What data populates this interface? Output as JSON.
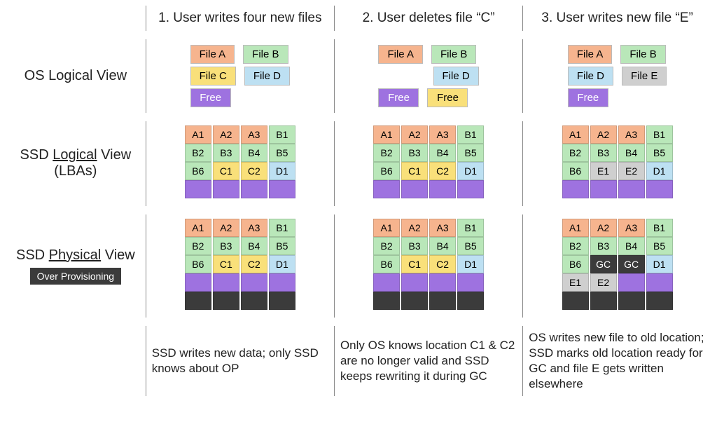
{
  "colors": {
    "peach": "#f6b48e",
    "green": "#b9e7b9",
    "yellow": "#f9e07a",
    "blue": "#bde0f2",
    "purple": "#9e72e0",
    "gray": "#cfcfcf",
    "dark": "#3b3b3b",
    "white": "#ffffff"
  },
  "headers": {
    "step1": "1. User writes four  new files",
    "step2": "2. User deletes file “C”",
    "step3": "3. User writes new file “E”"
  },
  "rowLabels": {
    "os": "OS Logical View",
    "ssdL_a": "SSD ",
    "ssdL_b": "Logical",
    "ssdL_c": " View (LBAs)",
    "ssdP_a": "SSD ",
    "ssdP_b": "Physical",
    "ssdP_c": " View",
    "over": "Over Provisioning"
  },
  "files": {
    "A": {
      "label": "File A",
      "color": "peach"
    },
    "B": {
      "label": "File B",
      "color": "green"
    },
    "C": {
      "label": "File C",
      "color": "yellow"
    },
    "D": {
      "label": "File D",
      "color": "blue"
    },
    "E": {
      "label": "File E",
      "color": "gray"
    },
    "Free": {
      "label": "Free",
      "color": "purple"
    },
    "FreeY": {
      "label": "Free",
      "color": "yellow"
    }
  },
  "osViews": {
    "step1": [
      [
        "A",
        "B"
      ],
      [
        "C",
        "D"
      ],
      [
        "Free",
        null
      ]
    ],
    "step2": [
      [
        "A",
        "B"
      ],
      [
        null,
        "D"
      ],
      [
        "Free",
        "FreeY"
      ]
    ],
    "step3": [
      [
        "A",
        "B"
      ],
      [
        "D",
        "E"
      ],
      [
        "Free",
        null
      ]
    ]
  },
  "ssdLogical": {
    "step1": [
      [
        {
          "t": "A1",
          "c": "peach"
        },
        {
          "t": "A2",
          "c": "peach"
        },
        {
          "t": "A3",
          "c": "peach"
        },
        {
          "t": "B1",
          "c": "green"
        }
      ],
      [
        {
          "t": "B2",
          "c": "green"
        },
        {
          "t": "B3",
          "c": "green"
        },
        {
          "t": "B4",
          "c": "green"
        },
        {
          "t": "B5",
          "c": "green"
        }
      ],
      [
        {
          "t": "B6",
          "c": "green"
        },
        {
          "t": "C1",
          "c": "yellow"
        },
        {
          "t": "C2",
          "c": "yellow"
        },
        {
          "t": "D1",
          "c": "blue"
        }
      ],
      [
        {
          "t": "",
          "c": "purple"
        },
        {
          "t": "",
          "c": "purple"
        },
        {
          "t": "",
          "c": "purple"
        },
        {
          "t": "",
          "c": "purple"
        }
      ]
    ],
    "step2": [
      [
        {
          "t": "A1",
          "c": "peach"
        },
        {
          "t": "A2",
          "c": "peach"
        },
        {
          "t": "A3",
          "c": "peach"
        },
        {
          "t": "B1",
          "c": "green"
        }
      ],
      [
        {
          "t": "B2",
          "c": "green"
        },
        {
          "t": "B3",
          "c": "green"
        },
        {
          "t": "B4",
          "c": "green"
        },
        {
          "t": "B5",
          "c": "green"
        }
      ],
      [
        {
          "t": "B6",
          "c": "green"
        },
        {
          "t": "C1",
          "c": "yellow"
        },
        {
          "t": "C2",
          "c": "yellow"
        },
        {
          "t": "D1",
          "c": "blue"
        }
      ],
      [
        {
          "t": "",
          "c": "purple"
        },
        {
          "t": "",
          "c": "purple"
        },
        {
          "t": "",
          "c": "purple"
        },
        {
          "t": "",
          "c": "purple"
        }
      ]
    ],
    "step3": [
      [
        {
          "t": "A1",
          "c": "peach"
        },
        {
          "t": "A2",
          "c": "peach"
        },
        {
          "t": "A3",
          "c": "peach"
        },
        {
          "t": "B1",
          "c": "green"
        }
      ],
      [
        {
          "t": "B2",
          "c": "green"
        },
        {
          "t": "B3",
          "c": "green"
        },
        {
          "t": "B4",
          "c": "green"
        },
        {
          "t": "B5",
          "c": "green"
        }
      ],
      [
        {
          "t": "B6",
          "c": "green"
        },
        {
          "t": "E1",
          "c": "gray"
        },
        {
          "t": "E2",
          "c": "gray"
        },
        {
          "t": "D1",
          "c": "blue"
        }
      ],
      [
        {
          "t": "",
          "c": "purple"
        },
        {
          "t": "",
          "c": "purple"
        },
        {
          "t": "",
          "c": "purple"
        },
        {
          "t": "",
          "c": "purple"
        }
      ]
    ]
  },
  "ssdPhysical": {
    "step1": [
      [
        {
          "t": "A1",
          "c": "peach"
        },
        {
          "t": "A2",
          "c": "peach"
        },
        {
          "t": "A3",
          "c": "peach"
        },
        {
          "t": "B1",
          "c": "green"
        }
      ],
      [
        {
          "t": "B2",
          "c": "green"
        },
        {
          "t": "B3",
          "c": "green"
        },
        {
          "t": "B4",
          "c": "green"
        },
        {
          "t": "B5",
          "c": "green"
        }
      ],
      [
        {
          "t": "B6",
          "c": "green"
        },
        {
          "t": "C1",
          "c": "yellow"
        },
        {
          "t": "C2",
          "c": "yellow"
        },
        {
          "t": "D1",
          "c": "blue"
        }
      ],
      [
        {
          "t": "",
          "c": "purple"
        },
        {
          "t": "",
          "c": "purple"
        },
        {
          "t": "",
          "c": "purple"
        },
        {
          "t": "",
          "c": "purple"
        }
      ],
      [
        {
          "t": "",
          "c": "dark"
        },
        {
          "t": "",
          "c": "dark"
        },
        {
          "t": "",
          "c": "dark"
        },
        {
          "t": "",
          "c": "dark"
        }
      ]
    ],
    "step2": [
      [
        {
          "t": "A1",
          "c": "peach"
        },
        {
          "t": "A2",
          "c": "peach"
        },
        {
          "t": "A3",
          "c": "peach"
        },
        {
          "t": "B1",
          "c": "green"
        }
      ],
      [
        {
          "t": "B2",
          "c": "green"
        },
        {
          "t": "B3",
          "c": "green"
        },
        {
          "t": "B4",
          "c": "green"
        },
        {
          "t": "B5",
          "c": "green"
        }
      ],
      [
        {
          "t": "B6",
          "c": "green"
        },
        {
          "t": "C1",
          "c": "yellow"
        },
        {
          "t": "C2",
          "c": "yellow"
        },
        {
          "t": "D1",
          "c": "blue"
        }
      ],
      [
        {
          "t": "",
          "c": "purple"
        },
        {
          "t": "",
          "c": "purple"
        },
        {
          "t": "",
          "c": "purple"
        },
        {
          "t": "",
          "c": "purple"
        }
      ],
      [
        {
          "t": "",
          "c": "dark"
        },
        {
          "t": "",
          "c": "dark"
        },
        {
          "t": "",
          "c": "dark"
        },
        {
          "t": "",
          "c": "dark"
        }
      ]
    ],
    "step3": [
      [
        {
          "t": "A1",
          "c": "peach"
        },
        {
          "t": "A2",
          "c": "peach"
        },
        {
          "t": "A3",
          "c": "peach"
        },
        {
          "t": "B1",
          "c": "green"
        }
      ],
      [
        {
          "t": "B2",
          "c": "green"
        },
        {
          "t": "B3",
          "c": "green"
        },
        {
          "t": "B4",
          "c": "green"
        },
        {
          "t": "B5",
          "c": "green"
        }
      ],
      [
        {
          "t": "B6",
          "c": "green"
        },
        {
          "t": "GC",
          "c": "dark",
          "fg": "white"
        },
        {
          "t": "GC",
          "c": "dark",
          "fg": "white"
        },
        {
          "t": "D1",
          "c": "blue"
        }
      ],
      [
        {
          "t": "E1",
          "c": "gray"
        },
        {
          "t": "E2",
          "c": "gray"
        },
        {
          "t": "",
          "c": "purple"
        },
        {
          "t": "",
          "c": "purple"
        }
      ],
      [
        {
          "t": "",
          "c": "dark"
        },
        {
          "t": "",
          "c": "dark"
        },
        {
          "t": "",
          "c": "dark"
        },
        {
          "t": "",
          "c": "dark"
        }
      ]
    ]
  },
  "captions": {
    "step1": "SSD writes new data; only SSD knows about OP",
    "step2": "Only OS knows location C1 & C2 are no longer valid and SSD keeps rewriting it during GC",
    "step3": "OS writes new file to old location; SSD marks old location ready for GC and file E gets written elsewhere"
  }
}
